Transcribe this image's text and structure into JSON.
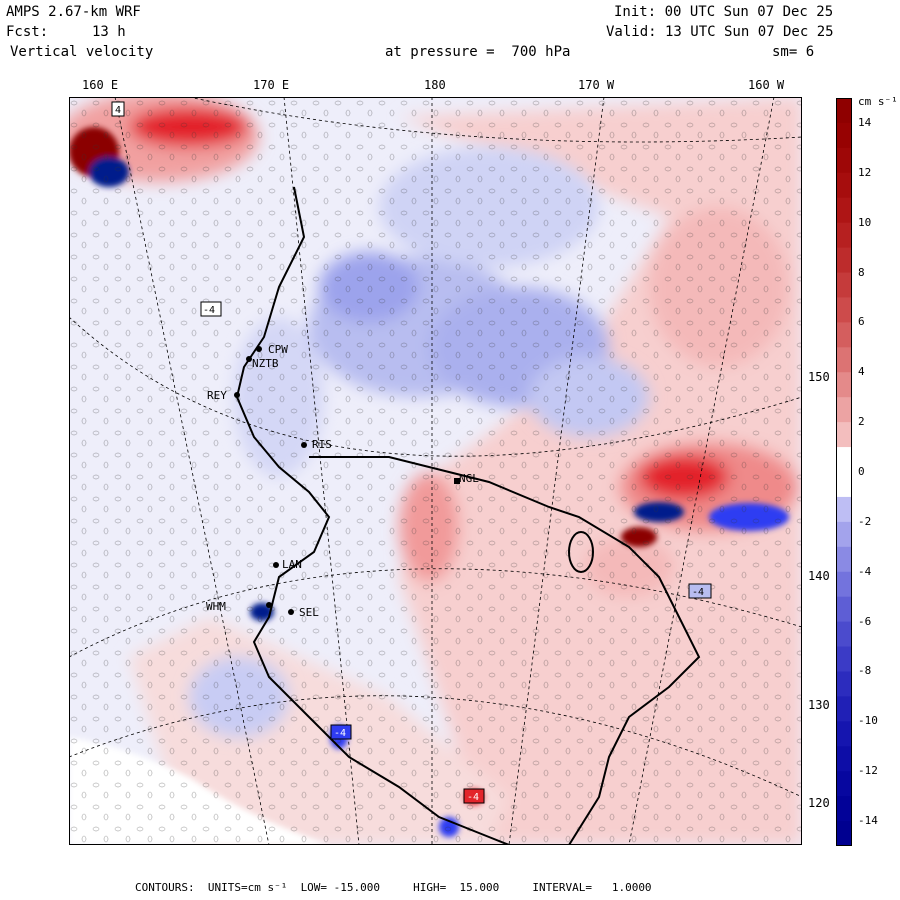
{
  "header": {
    "model": "AMPS 2.67-km WRF",
    "init": "Init: 00 UTC Sun 07 Dec 25",
    "fcst_label": "Fcst:",
    "fcst_value": "13 h",
    "valid": "Valid: 13 UTC Sun 07 Dec 25",
    "field": "Vertical velocity",
    "level": "at pressure =  700 hPa",
    "smoothing": "sm= 6"
  },
  "lon_labels": [
    "160 E",
    "170 E",
    "180",
    "170 W",
    "160 W"
  ],
  "lat_labels": [
    "150 W",
    "140 W",
    "130 W",
    "120 W"
  ],
  "stations": [
    "CPW",
    "NZTB",
    "REY",
    "RIS",
    "NGL",
    "LAN",
    "WHM",
    "SEL"
  ],
  "extreme_markers": [
    "4",
    "-4",
    "-4",
    "-4",
    "-4"
  ],
  "colorbar": {
    "units": "cm s⁻¹",
    "ticks": [
      "14",
      "12",
      "10",
      "8",
      "6",
      "4",
      "2",
      "0",
      "-2",
      "-4",
      "-6",
      "-8",
      "-10",
      "-12",
      "-14"
    ],
    "colors": {
      "strong_up": "#8b0000",
      "up": "#e3242b",
      "weak_up": "#f7c8c8",
      "neutral": "#ffffff",
      "weak_down": "#d6d9f5",
      "down": "#2f3cf2",
      "strong_down": "#001a8c"
    }
  },
  "footer": {
    "contours": "CONTOURS:  UNITS=cm s⁻¹  LOW= -15.000     HIGH=  15.000     INTERVAL=   1.0000"
  }
}
